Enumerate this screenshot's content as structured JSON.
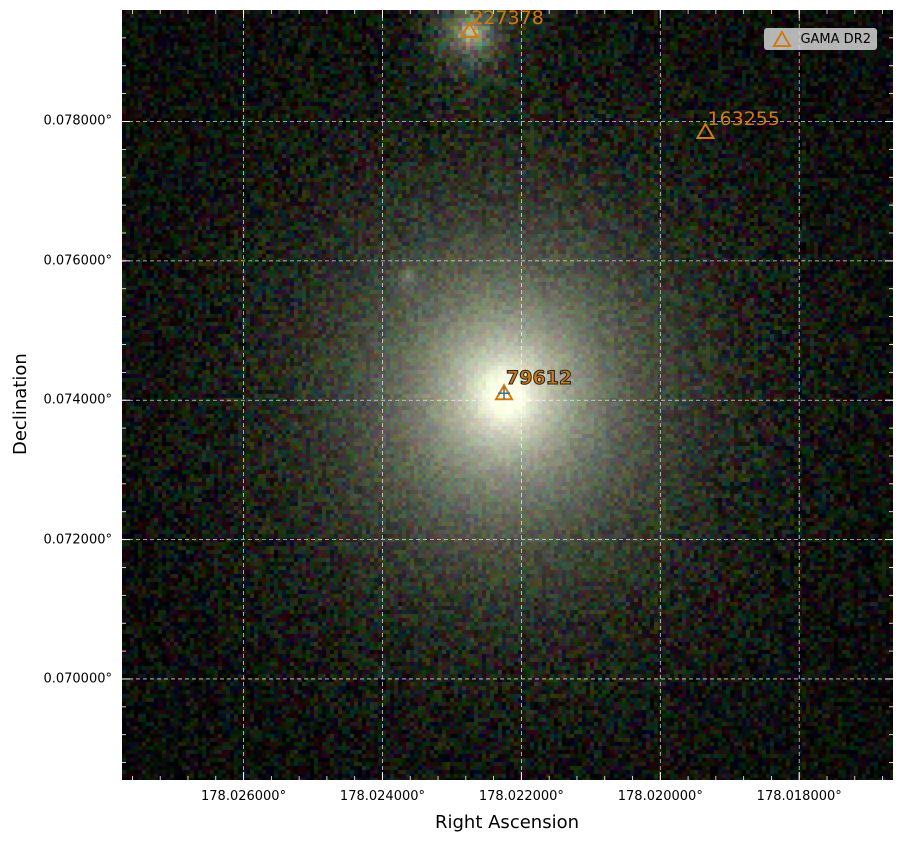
{
  "axes": {
    "xlabel": "Right Ascension",
    "ylabel": "Declination",
    "xticks": [
      "178.026000°",
      "178.024000°",
      "178.022000°",
      "178.020000°",
      "178.018000°"
    ],
    "yticks": [
      "0.078000°",
      "0.076000°",
      "0.074000°",
      "0.072000°",
      "0.070000°"
    ],
    "grid": true,
    "xlim": [
      178.02775,
      178.01665
    ],
    "ylim": [
      0.06855,
      0.0796
    ]
  },
  "legend": {
    "label": "GAMA DR2",
    "marker": "triangle-outline",
    "color": "#d07a10",
    "placement": "top-right"
  },
  "sources": [
    {
      "id": "227378",
      "ra": 178.02275,
      "dec": 0.0793
    },
    {
      "id": "163255",
      "ra": 178.01935,
      "dec": 0.07785
    },
    {
      "id": "79612",
      "ra": 178.02225,
      "dec": 0.0741
    }
  ],
  "colors": {
    "marker": "#d07a10",
    "grid": "#ffffff",
    "background": "#000000",
    "galaxy_core": "#ffffff"
  }
}
